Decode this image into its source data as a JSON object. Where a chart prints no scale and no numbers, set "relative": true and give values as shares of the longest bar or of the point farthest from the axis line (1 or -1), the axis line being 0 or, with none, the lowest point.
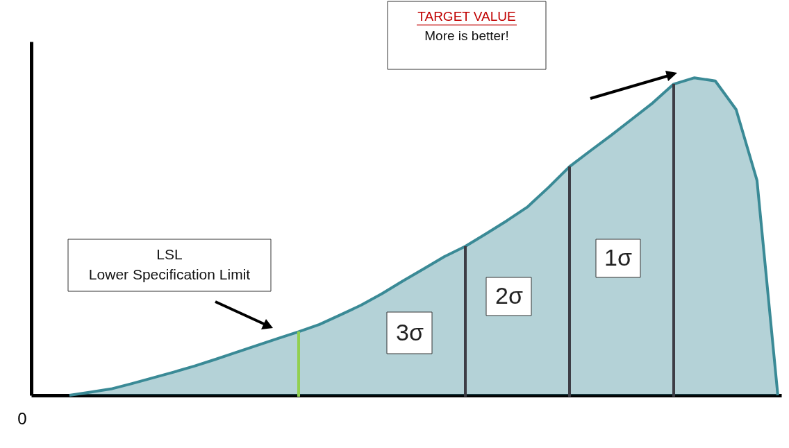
{
  "chart_data": {
    "type": "area",
    "relative": true,
    "categories": [
      null,
      null,
      null,
      null,
      null,
      null,
      null,
      null,
      null,
      null,
      null,
      null,
      null,
      null,
      null,
      null,
      null,
      null,
      null,
      null,
      null,
      null,
      null,
      null,
      null,
      null,
      null,
      null,
      null,
      null,
      null,
      null,
      null,
      null,
      null
    ],
    "series": [
      {
        "color": "#3a8a96",
        "values": [
          0,
          0.01,
          0.02,
          0.037,
          0.055,
          0.073,
          0.092,
          0.113,
          0.135,
          0.157,
          0.179,
          0.2,
          0.223,
          0.253,
          0.284,
          0.32,
          0.36,
          0.398,
          0.437,
          0.469,
          0.509,
          0.55,
          0.594,
          0.655,
          0.72,
          0.77,
          0.819,
          0.87,
          0.921,
          0.98,
          1,
          0.99,
          0.9,
          0.677,
          0
        ]
      }
    ],
    "annotations": [
      "TARGET VALUE",
      "More is better!",
      "LSL",
      "Lower Specification Limit",
      "3σ",
      "2σ",
      "1σ",
      "0"
    ]
  }
}
